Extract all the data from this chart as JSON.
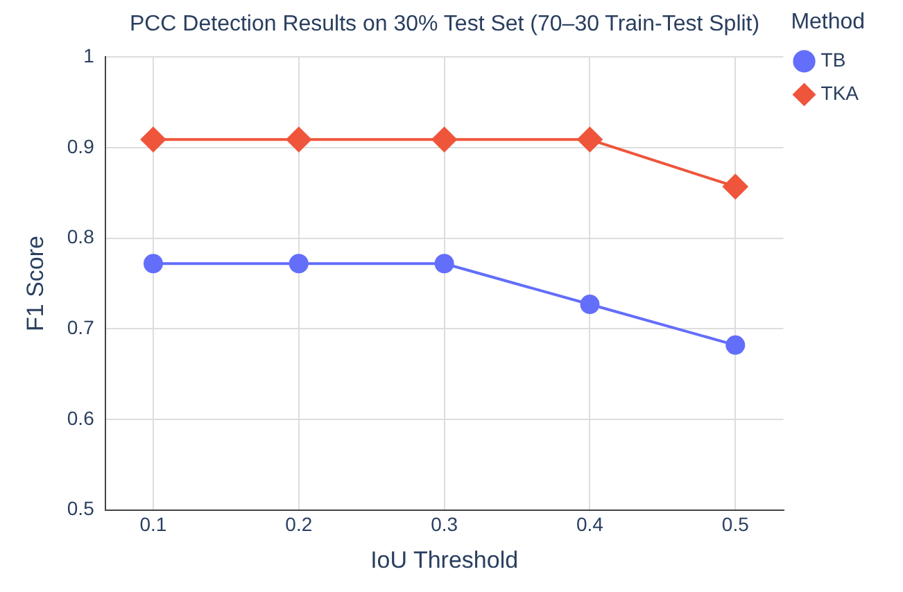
{
  "chart_data": {
    "type": "line",
    "title": "PCC Detection Results on 30% Test Set (70–30 Train-Test Split)",
    "xlabel": "IoU Threshold",
    "ylabel": "F1 Score",
    "legend_title": "Method",
    "x": [
      0.1,
      0.2,
      0.3,
      0.4,
      0.5
    ],
    "series": [
      {
        "name": "TB",
        "color": "#636efa",
        "marker": "circle",
        "values": [
          0.772,
          0.772,
          0.772,
          0.727,
          0.682
        ]
      },
      {
        "name": "TKA",
        "color": "#ef553b",
        "marker": "diamond",
        "values": [
          0.909,
          0.909,
          0.909,
          0.909,
          0.857
        ]
      }
    ],
    "xlim": [
      0.067,
      0.533
    ],
    "xticks": [
      0.1,
      0.2,
      0.3,
      0.4,
      0.5
    ],
    "ylim": [
      0.5,
      1
    ],
    "yticks": [
      0.5,
      0.6,
      0.7,
      0.8,
      0.9,
      1
    ],
    "grid": true,
    "legend": "top right",
    "line_style": "solid"
  }
}
